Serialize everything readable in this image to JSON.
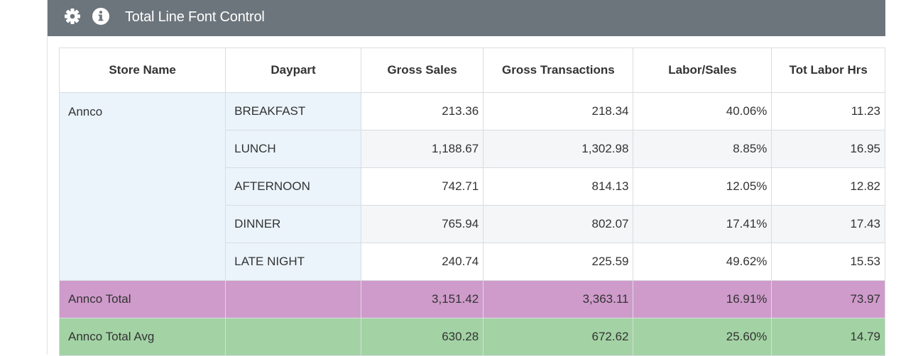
{
  "header": {
    "title": "Total Line Font Control",
    "settings_icon": "gear-icon",
    "info_icon": "info-icon",
    "background": "#6c757c"
  },
  "table": {
    "columns": [
      "Store Name",
      "Daypart",
      "Gross Sales",
      "Gross Transactions",
      "Labor/Sales",
      "Tot Labor Hrs"
    ],
    "store": "Annco",
    "rows": [
      {
        "daypart": "BREAKFAST",
        "gross_sales": "213.36",
        "gross_transactions": "218.34",
        "labor_sales": "40.06%",
        "tot_labor_hrs": "11.23"
      },
      {
        "daypart": "LUNCH",
        "gross_sales": "1,188.67",
        "gross_transactions": "1,302.98",
        "labor_sales": "8.85%",
        "tot_labor_hrs": "16.95"
      },
      {
        "daypart": "AFTERNOON",
        "gross_sales": "742.71",
        "gross_transactions": "814.13",
        "labor_sales": "12.05%",
        "tot_labor_hrs": "12.82"
      },
      {
        "daypart": "DINNER",
        "gross_sales": "765.94",
        "gross_transactions": "802.07",
        "labor_sales": "17.41%",
        "tot_labor_hrs": "17.43"
      },
      {
        "daypart": "LATE NIGHT",
        "gross_sales": "240.74",
        "gross_transactions": "225.59",
        "labor_sales": "49.62%",
        "tot_labor_hrs": "15.53"
      }
    ],
    "total": {
      "label": "Annco Total",
      "gross_sales": "3,151.42",
      "gross_transactions": "3,363.11",
      "labor_sales": "16.91%",
      "tot_labor_hrs": "73.97"
    },
    "total_avg": {
      "label": "Annco Total Avg",
      "gross_sales": "630.28",
      "gross_transactions": "672.62",
      "labor_sales": "25.60%",
      "tot_labor_hrs": "14.79"
    }
  },
  "colors": {
    "store_cell_bg": "#ebf4fb",
    "total_row_bg": "#cf9bcb",
    "avg_row_bg": "#a3d3a4"
  }
}
